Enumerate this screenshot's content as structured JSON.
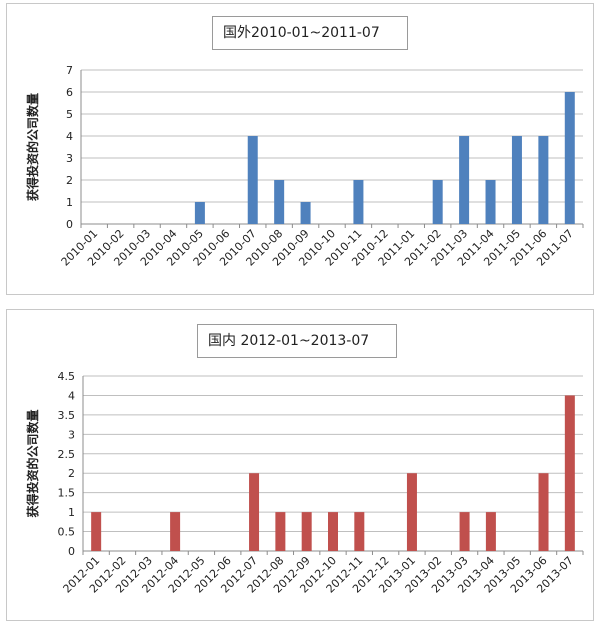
{
  "chart_data": [
    {
      "type": "bar",
      "title": "国外2010-01~2011-07",
      "xlabel": "",
      "ylabel": "获得投资的公司数量",
      "ylim": [
        0,
        7
      ],
      "yticks": [
        "0",
        "1",
        "2",
        "3",
        "4",
        "5",
        "6",
        "7"
      ],
      "grid": true,
      "color": "#4f81bd",
      "categories": [
        "2010-01",
        "2010-02",
        "2010-03",
        "2010-04",
        "2010-05",
        "2010-06",
        "2010-07",
        "2010-08",
        "2010-09",
        "2010-10",
        "2010-11",
        "2010-12",
        "2011-01",
        "2011-02",
        "2011-03",
        "2011-04",
        "2011-05",
        "2011-06",
        "2011-07"
      ],
      "values": [
        0,
        0,
        0,
        0,
        1,
        0,
        4,
        2,
        1,
        0,
        2,
        0,
        0,
        2,
        4,
        2,
        4,
        4,
        6
      ]
    },
    {
      "type": "bar",
      "title": "国内 2012-01~2013-07",
      "xlabel": "",
      "ylabel": "获得投资的公司数量",
      "ylim": [
        0,
        4.5
      ],
      "yticks": [
        "0",
        "0.5",
        "1",
        "1.5",
        "2",
        "2.5",
        "3",
        "3.5",
        "4",
        "4.5"
      ],
      "grid": true,
      "color": "#c0504d",
      "categories": [
        "2012-01",
        "2012-02",
        "2012-03",
        "2012-04",
        "2012-05",
        "2012-06",
        "2012-07",
        "2012-08",
        "2012-09",
        "2012-10",
        "2012-11",
        "2012-12",
        "2013-01",
        "2013-02",
        "2013-03",
        "2013-04",
        "2013-05",
        "2013-06",
        "2013-07"
      ],
      "values": [
        1,
        0,
        0,
        1,
        0,
        0,
        2,
        1,
        1,
        1,
        1,
        0,
        2,
        0,
        1,
        1,
        0,
        2,
        4
      ]
    }
  ]
}
